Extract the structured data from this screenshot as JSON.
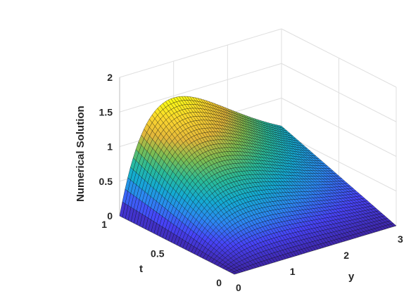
{
  "chart_data": {
    "type": "surface3d",
    "title": "",
    "xlabel": "y",
    "ylabel": "t",
    "zlabel": "Numerical Solution",
    "x_ticks": [
      "0",
      "1",
      "2",
      "3"
    ],
    "y_ticks": [
      "0",
      "0.5",
      "1"
    ],
    "z_ticks": [
      "0",
      "0.5",
      "1",
      "1.5",
      "2"
    ],
    "xlim": [
      0,
      3
    ],
    "ylim": [
      0,
      1
    ],
    "zlim": [
      0,
      2
    ],
    "grid": true,
    "colormap": "parula",
    "colormap_stops": [
      "#3e26a8",
      "#4743f8",
      "#2c87f2",
      "#14abd2",
      "#2abb98",
      "#7dbd52",
      "#e3b73a",
      "#fad52e",
      "#f9fb15"
    ],
    "function": "z = 4 * t * y * exp(-y)",
    "peak": {
      "y": 1,
      "t": 1,
      "z": 1.47
    },
    "grid_resolution": {
      "y": 60,
      "t": 40
    }
  }
}
